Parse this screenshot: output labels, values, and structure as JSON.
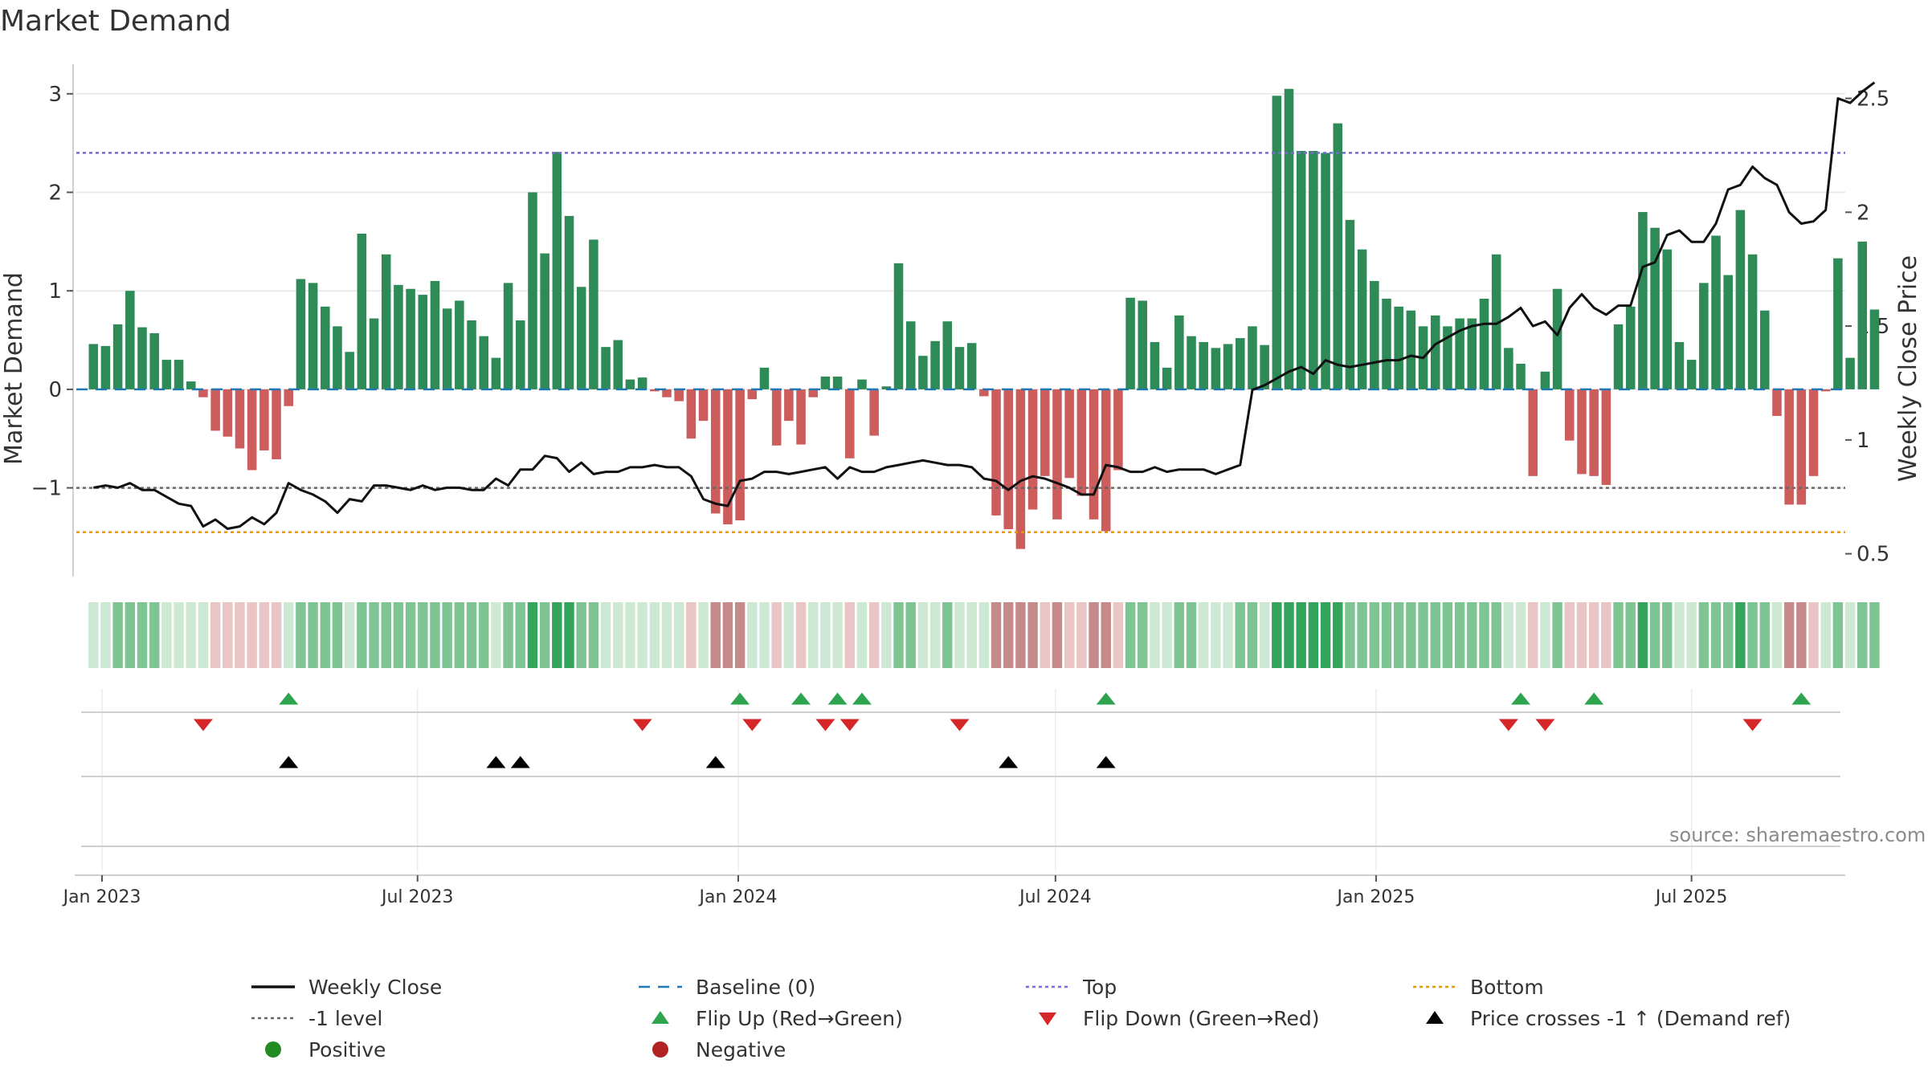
{
  "title": "Market Demand",
  "source": "source: sharemaestro.com",
  "chart_data": {
    "type": "bar",
    "title": "Market Demand",
    "ylabel_left": "Market Demand",
    "ylabel_right": "Weekly Close Price",
    "ylim_left": [
      -1.9,
      3.3
    ],
    "yticks_left": [
      3,
      2,
      1,
      0,
      -1
    ],
    "ytick_labels_left": [
      "3",
      "2",
      "1",
      "0",
      "−1"
    ],
    "ylim_right": [
      0.4,
      2.65
    ],
    "yticks_right": [
      2.5,
      2,
      1.5,
      1,
      0.5
    ],
    "ytick_labels_right": [
      "2.5",
      "2",
      "1.5",
      "1",
      "0.5"
    ],
    "x_start_index": -1.4,
    "x_end_index": 143.6,
    "xticks": [
      {
        "index": 0.71,
        "label": "Jan 2023"
      },
      {
        "index": 26.57,
        "label": "Jul 2023"
      },
      {
        "index": 52.86,
        "label": "Jan 2024"
      },
      {
        "index": 78.86,
        "label": "Jul 2024"
      },
      {
        "index": 105.14,
        "label": "Jan 2025"
      },
      {
        "index": 131.0,
        "label": "Jul 2025"
      }
    ],
    "reference_lines": {
      "top": 2.4,
      "bottom": -1.45,
      "minus1": -1.0,
      "baseline": 0
    },
    "demand": [
      0.46,
      0.44,
      0.66,
      1.0,
      0.63,
      0.57,
      0.3,
      0.3,
      0.08,
      -0.08,
      -0.42,
      -0.48,
      -0.6,
      -0.82,
      -0.62,
      -0.71,
      -0.17,
      1.12,
      1.08,
      0.84,
      0.64,
      0.38,
      1.58,
      0.72,
      1.37,
      1.06,
      1.02,
      0.96,
      1.1,
      0.82,
      0.9,
      0.7,
      0.54,
      0.32,
      1.08,
      0.7,
      2.0,
      1.38,
      2.41,
      1.76,
      1.04,
      1.52,
      0.43,
      0.5,
      0.1,
      0.12,
      -0.02,
      -0.08,
      -0.12,
      -0.5,
      -0.32,
      -1.26,
      -1.37,
      -1.33,
      -0.1,
      0.22,
      -0.57,
      -0.32,
      -0.56,
      -0.08,
      0.13,
      0.13,
      -0.7,
      0.1,
      -0.47,
      0.03,
      1.28,
      0.69,
      0.34,
      0.49,
      0.69,
      0.43,
      0.47,
      -0.07,
      -1.28,
      -1.42,
      -1.62,
      -1.22,
      -0.88,
      -1.32,
      -0.9,
      -1.08,
      -1.32,
      -1.44,
      -0.82,
      0.93,
      0.9,
      0.48,
      0.22,
      0.75,
      0.54,
      0.48,
      0.42,
      0.46,
      0.52,
      0.64,
      0.45,
      2.98,
      3.05,
      2.42,
      2.42,
      2.4,
      2.7,
      1.72,
      1.42,
      1.1,
      0.92,
      0.84,
      0.8,
      0.64,
      0.75,
      0.64,
      0.72,
      0.72,
      0.92,
      1.37,
      0.42,
      0.26,
      -0.88,
      0.18,
      1.02,
      -0.52,
      -0.86,
      -0.88,
      -0.97,
      0.66,
      0.84,
      1.8,
      1.64,
      1.42,
      0.48,
      0.3,
      1.08,
      1.56,
      1.16,
      1.82,
      1.37,
      0.8,
      -0.27,
      -1.17,
      -1.17,
      -0.88,
      -0.02,
      1.33,
      0.32,
      1.5,
      0.81
    ],
    "close": [
      0.79,
      0.8,
      0.79,
      0.81,
      0.78,
      0.78,
      0.75,
      0.72,
      0.71,
      0.62,
      0.65,
      0.61,
      0.62,
      0.66,
      0.63,
      0.68,
      0.81,
      0.78,
      0.76,
      0.73,
      0.68,
      0.74,
      0.73,
      0.8,
      0.8,
      0.79,
      0.78,
      0.8,
      0.78,
      0.79,
      0.79,
      0.78,
      0.78,
      0.83,
      0.8,
      0.87,
      0.87,
      0.93,
      0.92,
      0.86,
      0.9,
      0.85,
      0.86,
      0.86,
      0.88,
      0.88,
      0.89,
      0.88,
      0.88,
      0.84,
      0.74,
      0.72,
      0.71,
      0.82,
      0.83,
      0.86,
      0.86,
      0.85,
      0.86,
      0.87,
      0.88,
      0.83,
      0.88,
      0.86,
      0.86,
      0.88,
      0.89,
      0.9,
      0.91,
      0.9,
      0.89,
      0.89,
      0.88,
      0.83,
      0.82,
      0.78,
      0.82,
      0.84,
      0.83,
      0.81,
      0.79,
      0.76,
      0.76,
      0.89,
      0.88,
      0.86,
      0.86,
      0.88,
      0.86,
      0.87,
      0.87,
      0.87,
      0.85,
      0.87,
      0.89,
      1.22,
      1.24,
      1.27,
      1.3,
      1.32,
      1.29,
      1.35,
      1.33,
      1.32,
      1.33,
      1.34,
      1.35,
      1.35,
      1.37,
      1.36,
      1.42,
      1.45,
      1.48,
      1.5,
      1.51,
      1.51,
      1.54,
      1.58,
      1.5,
      1.52,
      1.46,
      1.58,
      1.64,
      1.58,
      1.55,
      1.59,
      1.59,
      1.76,
      1.78,
      1.9,
      1.92,
      1.87,
      1.87,
      1.95,
      2.1,
      2.12,
      2.2,
      2.15,
      2.12,
      2.0,
      1.95,
      1.96,
      2.01,
      2.5,
      2.48,
      2.53,
      2.57
    ],
    "strip": {
      "levels": [
        -1.5,
        -0.8,
        0,
        1.0,
        2.5
      ],
      "colors": [
        "#c58a8a",
        "#e9c5c5",
        "#cde9d4",
        "#7fc493",
        "#35a55d"
      ]
    },
    "flip_up": [
      16,
      53,
      58,
      61,
      63,
      83,
      117,
      123,
      140
    ],
    "flip_down": [
      9,
      45,
      54,
      60,
      62,
      71,
      116,
      119,
      136
    ],
    "price_cross": [
      16,
      33,
      35,
      51,
      75,
      83
    ],
    "colors": {
      "positive": "#2e8b57",
      "negative": "#cd5c5c",
      "close": "#111111",
      "top": "#7b68d8",
      "bottom": "#e8960c",
      "minus1": "#666666",
      "baseline": "#1f77b4",
      "flip_up": "#2ea44f",
      "flip_down": "#d62728",
      "cross": "#000000",
      "grid": "#e6e6e6"
    },
    "legend": [
      {
        "label": "Weekly Close",
        "symbol": "line-solid",
        "color": "#111111"
      },
      {
        "label": "Baseline (0)",
        "symbol": "line-dash",
        "color": "#1f77b4"
      },
      {
        "label": "Top",
        "symbol": "line-dot",
        "color": "#7b68d8"
      },
      {
        "label": "Bottom",
        "symbol": "line-dot",
        "color": "#e8960c"
      },
      {
        "label": "-1 level",
        "symbol": "line-dot",
        "color": "#666666"
      },
      {
        "label": "Flip Up (Red→Green)",
        "symbol": "tri-up",
        "color": "#2ea44f"
      },
      {
        "label": "Flip Down (Green→Red)",
        "symbol": "tri-down",
        "color": "#d62728"
      },
      {
        "label": "Price crosses -1 ↑ (Demand ref)",
        "symbol": "tri-up",
        "color": "#000000"
      },
      {
        "label": "Positive",
        "symbol": "dot",
        "color": "#228b22"
      },
      {
        "label": "Negative",
        "symbol": "dot",
        "color": "#b22222"
      }
    ]
  }
}
